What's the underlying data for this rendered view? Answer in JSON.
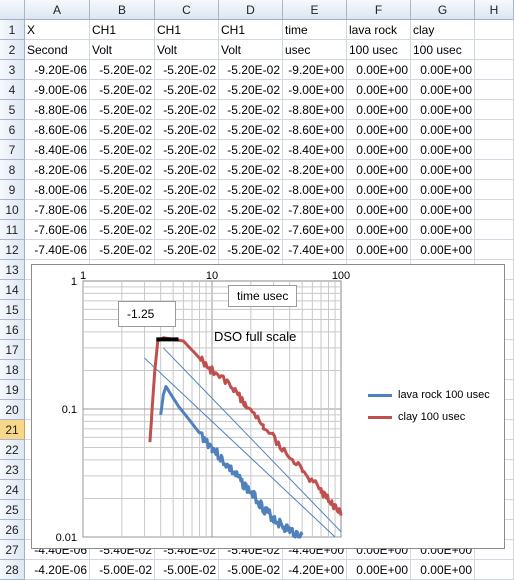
{
  "columns": [
    "A",
    "B",
    "C",
    "D",
    "E",
    "F",
    "G",
    "H"
  ],
  "row_numbers": [
    "1",
    "2",
    "3",
    "4",
    "5",
    "6",
    "7",
    "8",
    "9",
    "10",
    "11",
    "12",
    "13",
    "14",
    "15",
    "16",
    "17",
    "18",
    "19",
    "20",
    "21",
    "22",
    "23",
    "24",
    "25",
    "26",
    "27",
    "28"
  ],
  "selected_row": "21",
  "header_rows": [
    [
      "X",
      "CH1",
      "CH1",
      "CH1",
      "time",
      "lava rock",
      "clay",
      ""
    ],
    [
      "Second",
      "Volt",
      "Volt",
      "Volt",
      "usec",
      "100 usec",
      "100 usec",
      ""
    ]
  ],
  "data_rows": [
    [
      "-9.20E-06",
      "-5.20E-02",
      "-5.20E-02",
      "-5.20E-02",
      "-9.20E+00",
      "0.00E+00",
      "0.00E+00",
      ""
    ],
    [
      "-9.00E-06",
      "-5.20E-02",
      "-5.20E-02",
      "-5.20E-02",
      "-9.00E+00",
      "0.00E+00",
      "0.00E+00",
      ""
    ],
    [
      "-8.80E-06",
      "-5.20E-02",
      "-5.20E-02",
      "-5.20E-02",
      "-8.80E+00",
      "0.00E+00",
      "0.00E+00",
      ""
    ],
    [
      "-8.60E-06",
      "-5.20E-02",
      "-5.20E-02",
      "-5.20E-02",
      "-8.60E+00",
      "0.00E+00",
      "0.00E+00",
      ""
    ],
    [
      "-8.40E-06",
      "-5.20E-02",
      "-5.20E-02",
      "-5.20E-02",
      "-8.40E+00",
      "0.00E+00",
      "0.00E+00",
      ""
    ],
    [
      "-8.20E-06",
      "-5.20E-02",
      "-5.20E-02",
      "-5.20E-02",
      "-8.20E+00",
      "0.00E+00",
      "0.00E+00",
      ""
    ],
    [
      "-8.00E-06",
      "-5.20E-02",
      "-5.20E-02",
      "-5.20E-02",
      "-8.00E+00",
      "0.00E+00",
      "0.00E+00",
      ""
    ],
    [
      "-7.80E-06",
      "-5.20E-02",
      "-5.20E-02",
      "-5.20E-02",
      "-7.80E+00",
      "0.00E+00",
      "0.00E+00",
      ""
    ],
    [
      "-7.60E-06",
      "-5.20E-02",
      "-5.20E-02",
      "-5.20E-02",
      "-7.60E+00",
      "0.00E+00",
      "0.00E+00",
      ""
    ],
    [
      "-7.40E-06",
      "-5.20E-02",
      "-5.20E-02",
      "-5.20E-02",
      "-7.40E+00",
      "0.00E+00",
      "0.00E+00",
      ""
    ]
  ],
  "bottom_rows": [
    [
      "-4.40E-06",
      "-5.40E-02",
      "-5.40E-02",
      "-5.40E-02",
      "-4.40E+00",
      "0.00E+00",
      "0.00E+00",
      ""
    ],
    [
      "-4.20E-06",
      "-5.00E-02",
      "-5.00E-02",
      "-5.00E-02",
      "-4.20E+00",
      "0.00E+00",
      "0.00E+00",
      ""
    ]
  ],
  "chart_data": {
    "type": "line",
    "xscale": "log",
    "yscale": "log",
    "xlim": [
      1,
      100
    ],
    "ylim": [
      0.01,
      1
    ],
    "x_tick_labels": [
      "1",
      "10",
      "100"
    ],
    "y_tick_labels": [
      "1",
      "0.1",
      "0.01"
    ],
    "grid": true,
    "legend_position": "right",
    "series": [
      {
        "name": "lava rock 100 usec",
        "color": "#4f81bd",
        "points": [
          [
            4.0,
            0.09
          ],
          [
            4.2,
            0.13
          ],
          [
            4.4,
            0.15
          ],
          [
            4.8,
            0.13
          ],
          [
            5.5,
            0.105
          ],
          [
            6.5,
            0.085
          ],
          [
            8,
            0.065
          ],
          [
            10,
            0.05
          ],
          [
            12,
            0.04
          ],
          [
            15,
            0.031
          ],
          [
            18,
            0.025
          ],
          [
            22,
            0.02
          ],
          [
            26,
            0.016
          ],
          [
            30,
            0.014
          ],
          [
            36,
            0.012
          ],
          [
            42,
            0.011
          ],
          [
            50,
            0.01
          ]
        ]
      },
      {
        "name": "clay 100 usec",
        "color": "#c0504d",
        "points": [
          [
            3.3,
            0.055
          ],
          [
            3.6,
            0.2
          ],
          [
            3.8,
            0.34
          ],
          [
            4.2,
            0.36
          ],
          [
            5,
            0.35
          ],
          [
            6,
            0.34
          ],
          [
            8,
            0.25
          ],
          [
            10,
            0.2
          ],
          [
            14,
            0.15
          ],
          [
            18,
            0.11
          ],
          [
            25,
            0.075
          ],
          [
            35,
            0.05
          ],
          [
            50,
            0.033
          ],
          [
            70,
            0.023
          ],
          [
            85,
            0.018
          ],
          [
            100,
            0.015
          ]
        ]
      }
    ],
    "trendlines": [
      {
        "color": "#4f81bd",
        "points": [
          [
            3.0,
            0.25
          ],
          [
            90,
            0.01
          ]
        ]
      },
      {
        "color": "#4f81bd",
        "points": [
          [
            4.2,
            0.3
          ],
          [
            100,
            0.011
          ]
        ]
      }
    ],
    "full_scale_level": 0.35,
    "full_scale_xrange": [
      3.7,
      5.5
    ]
  },
  "annotations": {
    "x_axis_textbox": "time usec",
    "slope_textbox": "-1.25",
    "full_scale_label": "DSO full scale"
  }
}
